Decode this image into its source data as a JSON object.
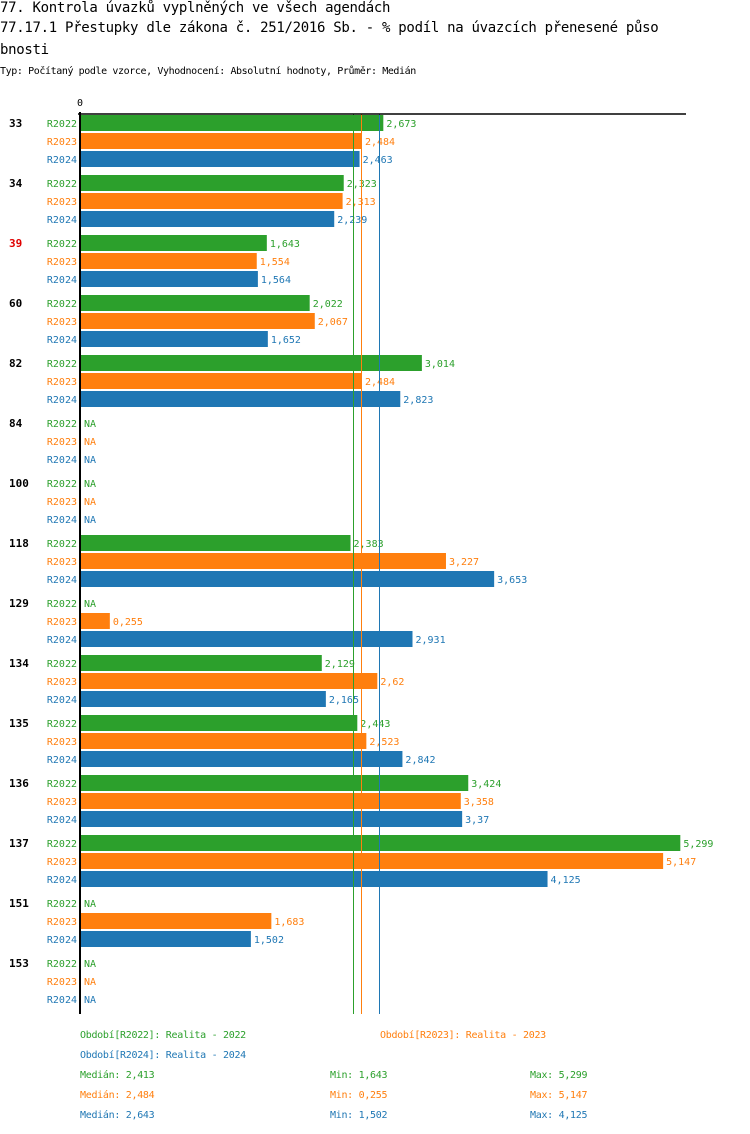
{
  "header": {
    "title_line1": "77. Kontrola úvazků vyplněných ve všech agendách",
    "title_line2": "77.17.1 Přestupky dle zákona č. 251/2016 Sb. - % podíl na úvazcích přenesené půso",
    "title_line3": "bnosti",
    "subtitle": "Typ: Počítaný podle vzorce, Vyhodnocení: Absolutní hodnoty, Průměr: Medián"
  },
  "colors": {
    "R2022": "#2ca02c",
    "R2023": "#ff7f0e",
    "R2024": "#1f77b4",
    "highlight_category": "#e00000",
    "axis": "#000000"
  },
  "chart_data": {
    "type": "bar",
    "orientation": "horizontal",
    "title": "77.17.1 Přestupky dle zákona č. 251/2016 Sb. - % podíl na úvazcích přenesené působnosti",
    "xlabel": "",
    "ylabel": "",
    "x_tick_labels": [
      "0"
    ],
    "xlim": [
      0,
      5.5
    ],
    "grid": false,
    "categories": [
      "33",
      "34",
      "39",
      "60",
      "82",
      "84",
      "100",
      "118",
      "129",
      "134",
      "135",
      "136",
      "137",
      "151",
      "153"
    ],
    "highlighted_categories": [
      "39"
    ],
    "series": [
      {
        "name": "R2022",
        "label": "Realita - 2022",
        "values": [
          2.673,
          2.323,
          1.643,
          2.022,
          3.014,
          null,
          null,
          2.383,
          null,
          2.129,
          2.443,
          3.424,
          5.299,
          null,
          null
        ],
        "value_labels": [
          "2,673",
          "2,323",
          "1,643",
          "2,022",
          "3,014",
          "NA",
          "NA",
          "2,383",
          "NA",
          "2,129",
          "2,443",
          "3,424",
          "5,299",
          "NA",
          "NA"
        ]
      },
      {
        "name": "R2023",
        "label": "Realita - 2023",
        "values": [
          2.484,
          2.313,
          1.554,
          2.067,
          2.484,
          null,
          null,
          3.227,
          0.255,
          2.62,
          2.523,
          3.358,
          5.147,
          1.683,
          null
        ],
        "value_labels": [
          "2,484",
          "2,313",
          "1,554",
          "2,067",
          "2,484",
          "NA",
          "NA",
          "3,227",
          "0,255",
          "2,62",
          "2,523",
          "3,358",
          "5,147",
          "1,683",
          "NA"
        ]
      },
      {
        "name": "R2024",
        "label": "Realita - 2024",
        "values": [
          2.463,
          2.239,
          1.564,
          1.652,
          2.823,
          null,
          null,
          3.653,
          2.931,
          2.165,
          2.842,
          3.37,
          4.125,
          1.502,
          null
        ],
        "value_labels": [
          "2,463",
          "2,239",
          "1,564",
          "1,652",
          "2,823",
          "NA",
          "NA",
          "3,653",
          "2,931",
          "2,165",
          "2,842",
          "3,37",
          "4,125",
          "1,502",
          "NA"
        ]
      }
    ],
    "reference_lines": [
      {
        "series": "R2022",
        "type": "median",
        "value": 2.413
      },
      {
        "series": "R2023",
        "type": "median",
        "value": 2.484
      },
      {
        "series": "R2024",
        "type": "median",
        "value": 2.643
      }
    ],
    "legend": {
      "placement": "bottom",
      "entries": [
        {
          "series": "R2022",
          "text": "Období[R2022]: Realita - 2022"
        },
        {
          "series": "R2023",
          "text": "Období[R2023]: Realita - 2023"
        },
        {
          "series": "R2024",
          "text": "Období[R2024]: Realita - 2024"
        }
      ]
    },
    "stats": [
      {
        "series": "R2022",
        "median": "Medián: 2,413",
        "min": "Min: 1,643",
        "max": "Max: 5,299"
      },
      {
        "series": "R2023",
        "median": "Medián: 2,484",
        "min": "Min: 0,255",
        "max": "Max: 5,147"
      },
      {
        "series": "R2024",
        "median": "Medián: 2,643",
        "min": "Min: 1,502",
        "max": "Max: 4,125"
      }
    ]
  }
}
